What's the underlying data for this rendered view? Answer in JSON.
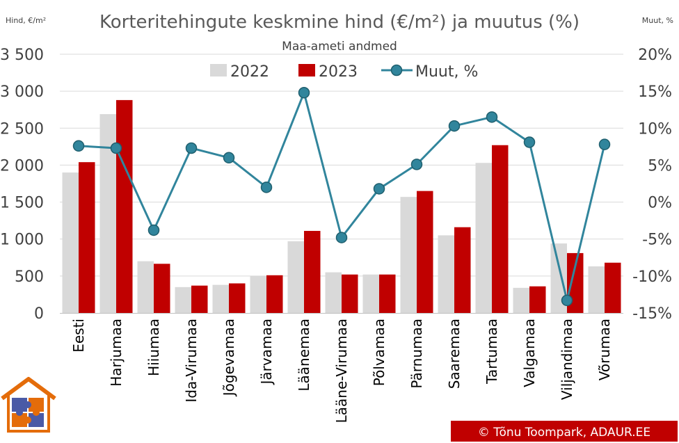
{
  "chart_data": {
    "type": "bar",
    "title": "Korteritehingute keskmine hind (€/m²) ja muutus (%)",
    "subtitle": "Maa-ameti andmed",
    "ylabel": "Hind, €/m²",
    "y2label": "Muut, %",
    "ylim": [
      0,
      3500
    ],
    "y2lim": [
      -15,
      20
    ],
    "yticks": [
      0,
      500,
      1000,
      1500,
      2000,
      2500,
      3000,
      3500
    ],
    "ytick_labels": [
      "0",
      "500",
      "1 000",
      "1 500",
      "2 000",
      "2 500",
      "3 000",
      "3 500"
    ],
    "y2ticks": [
      -15,
      -10,
      -5,
      0,
      5,
      10,
      15,
      20
    ],
    "y2tick_labels": [
      "-15%",
      "-10%",
      "-5%",
      "0%",
      "5%",
      "10%",
      "15%",
      "20%"
    ],
    "grid": true,
    "legend_position": "top",
    "categories": [
      "Eesti",
      "Harjumaa",
      "Hiiumaa",
      "Ida-Virumaa",
      "Jõgevamaa",
      "Järvamaa",
      "Läänemaa",
      "Lääne-Virumaa",
      "Põlvamaa",
      "Pärnumaa",
      "Saaremaa",
      "Tartumaa",
      "Valgamaa",
      "Viljandimaa",
      "Võrumaa"
    ],
    "series": [
      {
        "name": "2022",
        "kind": "bar",
        "color": "#d9d9d9",
        "values": [
          1900,
          2690,
          700,
          350,
          380,
          500,
          970,
          550,
          520,
          1570,
          1050,
          2030,
          340,
          940,
          630
        ]
      },
      {
        "name": "2023",
        "kind": "bar",
        "color": "#c00000",
        "values": [
          2040,
          2880,
          665,
          370,
          400,
          510,
          1110,
          520,
          520,
          1650,
          1160,
          2270,
          360,
          810,
          680
        ]
      },
      {
        "name": "Muut, %",
        "kind": "line",
        "axis": "right",
        "color": "#31859c",
        "values": [
          7.6,
          7.3,
          -3.8,
          7.3,
          6.0,
          2.0,
          14.8,
          -4.8,
          1.8,
          5.1,
          10.3,
          11.5,
          8.1,
          -13.3,
          7.8
        ]
      }
    ]
  },
  "credit": "© Tõnu Toompark, ADAUR.EE"
}
